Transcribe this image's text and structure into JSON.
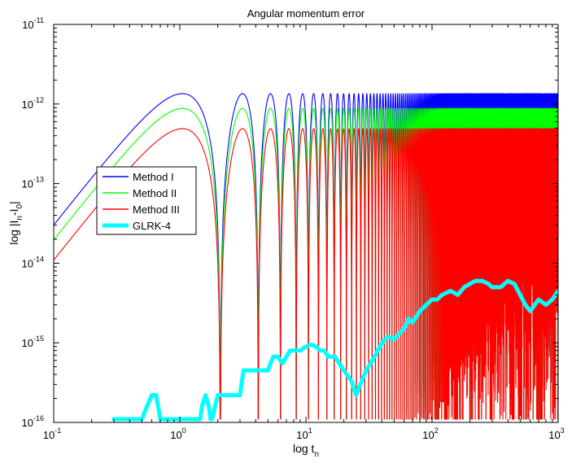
{
  "chart_data": {
    "type": "line",
    "title": "Angular momentum error",
    "xlabel": {
      "base": "log t",
      "sub": "n"
    },
    "ylabel": {
      "p1": "log |I",
      "s1": "n",
      "p2": "-I",
      "s2": "0",
      "p3": "|"
    },
    "xscale": "log",
    "yscale": "log",
    "xlim": [
      0.1,
      1000
    ],
    "ylim": [
      1e-16,
      1e-11
    ],
    "xticks": [
      {
        "value": 0.1,
        "base": "10",
        "exp": "-1"
      },
      {
        "value": 1,
        "base": "10",
        "exp": "0"
      },
      {
        "value": 10,
        "base": "10",
        "exp": "1"
      },
      {
        "value": 100,
        "base": "10",
        "exp": "2"
      },
      {
        "value": 1000,
        "base": "10",
        "exp": "3"
      }
    ],
    "yticks": [
      {
        "value": 1e-16,
        "base": "10",
        "exp": "-16"
      },
      {
        "value": 1e-15,
        "base": "10",
        "exp": "-15"
      },
      {
        "value": 1e-14,
        "base": "10",
        "exp": "-14"
      },
      {
        "value": 1e-13,
        "base": "10",
        "exp": "-13"
      },
      {
        "value": 1e-12,
        "base": "10",
        "exp": "-12"
      },
      {
        "value": 1e-11,
        "base": "10",
        "exp": "-11"
      }
    ],
    "grid": false,
    "legend_position": "left-middle",
    "series": [
      {
        "name": "Method I",
        "color": "#0000ff",
        "model": "oscillating",
        "amplitude": 1.35e-12,
        "period": 2.0944,
        "floor": 1.1e-16
      },
      {
        "name": "Method II",
        "color": "#00ff00",
        "model": "oscillating",
        "amplitude": 8.8e-13,
        "period": 2.0944,
        "floor": 1.1e-16
      },
      {
        "name": "Method III",
        "color": "#ff0000",
        "model": "oscillating",
        "amplitude": 4.9e-13,
        "period": 2.0944,
        "floor": 1.1e-16
      },
      {
        "name": "GLRK-4",
        "color": "#00ffff",
        "model": "points",
        "line_width": "thick",
        "x": [
          0.3,
          0.5,
          0.55,
          0.6,
          0.65,
          0.7,
          0.95,
          1.0,
          1.2,
          1.3,
          1.45,
          1.5,
          1.6,
          1.7,
          1.75,
          1.8,
          2.0,
          2.5,
          3.0,
          3.2,
          3.5,
          4.0,
          4.5,
          5.0,
          5.5,
          6.0,
          6.5,
          7.0,
          7.5,
          8.0,
          9.0,
          10.0,
          11.0,
          12.0,
          13.0,
          14.0,
          15.0,
          17.0,
          20.0,
          23.0,
          25.0,
          30.0,
          35.0,
          40.0,
          45.0,
          50.0,
          55.0,
          60.0,
          65.0,
          70.0,
          80.0,
          90.0,
          100.0,
          110.0,
          120.0,
          140.0,
          160.0,
          180.0,
          200.0,
          220.0,
          250.0,
          280.0,
          300.0,
          350.0,
          400.0,
          450.0,
          500.0,
          550.0,
          600.0,
          700.0,
          800.0,
          900.0,
          1000.0
        ],
        "y": [
          1.1e-16,
          1.1e-16,
          1.6e-16,
          2.2e-16,
          2.2e-16,
          1.1e-16,
          1.1e-16,
          1.1e-16,
          1.1e-16,
          1.1e-16,
          1.1e-16,
          1.6e-16,
          2.2e-16,
          1.6e-16,
          1.1e-16,
          1.1e-16,
          2.2e-16,
          2.2e-16,
          2.2e-16,
          4.5e-16,
          4.5e-16,
          4.5e-16,
          4.5e-16,
          4.5e-16,
          6.7e-16,
          6.7e-16,
          5.5e-16,
          6.7e-16,
          8e-16,
          8e-16,
          8e-16,
          9e-16,
          9.5e-16,
          9e-16,
          8e-16,
          8e-16,
          6.7e-16,
          6.7e-16,
          4.5e-16,
          3.3e-16,
          2.2e-16,
          4.5e-16,
          6.7e-16,
          1e-15,
          1.2e-15,
          1.1e-15,
          1.3e-15,
          1.5e-15,
          2e-15,
          1.8e-15,
          2.5e-15,
          3e-15,
          3.5e-15,
          3.5e-15,
          4e-15,
          4.5e-15,
          4e-15,
          5e-15,
          5.5e-15,
          6e-15,
          6e-15,
          5.5e-15,
          5e-15,
          5e-15,
          6e-15,
          5.5e-15,
          4e-15,
          3e-15,
          2.5e-15,
          3.5e-15,
          3e-15,
          3.5e-15,
          4.5e-15
        ]
      }
    ]
  }
}
